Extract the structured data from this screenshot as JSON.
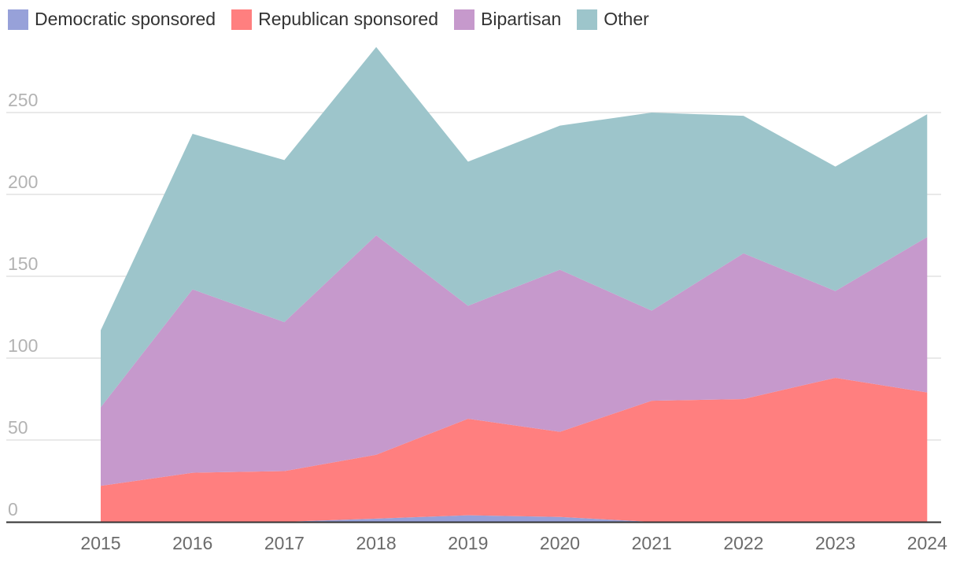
{
  "chart_data": {
    "type": "area",
    "stacked": true,
    "categories": [
      "2015",
      "2016",
      "2017",
      "2018",
      "2019",
      "2020",
      "2021",
      "2022",
      "2023",
      "2024"
    ],
    "series": [
      {
        "name": "Democratic sponsored",
        "color": "#97a1d9",
        "values": [
          0,
          0,
          0,
          2,
          4,
          3,
          0,
          0,
          0,
          0
        ]
      },
      {
        "name": "Republican sponsored",
        "color": "#ff7f7f",
        "values": [
          22,
          30,
          31,
          39,
          59,
          52,
          74,
          75,
          88,
          79
        ]
      },
      {
        "name": "Bipartisan",
        "color": "#c699cc",
        "values": [
          48,
          112,
          91,
          134,
          69,
          99,
          55,
          89,
          53,
          95
        ]
      },
      {
        "name": "Other",
        "color": "#9dc5cb",
        "values": [
          47,
          95,
          99,
          115,
          88,
          88,
          121,
          84,
          76,
          75
        ]
      }
    ],
    "y_ticks": [
      "0",
      "50",
      "100",
      "150",
      "200",
      "250"
    ],
    "ylim": [
      0,
      300
    ],
    "grid": true,
    "legend_position": "top-left"
  }
}
